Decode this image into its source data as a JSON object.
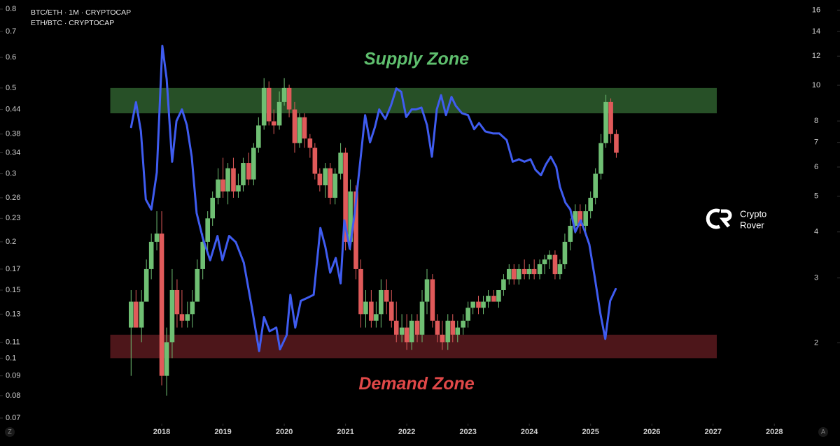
{
  "chart_data": {
    "type": "candlestick",
    "logscale": true,
    "xlim": [
      2015.36,
      2028.5
    ],
    "xticks": [
      2018,
      2019,
      2020,
      2021,
      2022,
      2023,
      2024,
      2025,
      2026,
      2027,
      2028
    ],
    "ylim": [
      0.07,
      0.8
    ],
    "yticks": [
      0.8,
      0.7,
      0.6,
      0.5,
      0.44,
      0.38,
      0.34,
      0.3,
      0.26,
      0.23,
      0.2,
      0.17,
      0.15,
      0.13,
      0.11,
      0.1,
      0.09,
      0.08,
      0.07
    ],
    "y2lim": [
      1.25,
      16.1
    ],
    "y2ticks": [
      16,
      14,
      12,
      10,
      8,
      7,
      6,
      5,
      4,
      3,
      2
    ],
    "zones": [
      {
        "label": "Supply Zone",
        "range": [
          0.43,
          0.5
        ],
        "x_range": [
          2017.16,
          2027.06
        ],
        "color": "#2e5e2e",
        "label_color": "#5fbf6e"
      },
      {
        "label": "Demand Zone",
        "range": [
          0.1,
          0.115
        ],
        "x_range": [
          2017.16,
          2027.06
        ],
        "color": "#5a1a1e",
        "label_color": "#e04848"
      }
    ],
    "logo": [
      "Crypto",
      "Rover"
    ],
    "buttons": [
      "Z",
      "A"
    ],
    "series": [
      {
        "name": "BTC/ETH · 1M · CRYPTOCAP",
        "type": "candlestick",
        "up_color": "#6fbf73",
        "down_color": "#e05a5a",
        "x": [
          2017.5,
          2017.58,
          2017.67,
          2017.75,
          2017.83,
          2017.92,
          2018,
          2018.08,
          2018.17,
          2018.25,
          2018.33,
          2018.42,
          2018.5,
          2018.58,
          2018.67,
          2018.75,
          2018.83,
          2018.92,
          2019,
          2019.08,
          2019.17,
          2019.25,
          2019.33,
          2019.42,
          2019.5,
          2019.58,
          2019.67,
          2019.75,
          2019.83,
          2019.92,
          2020,
          2020.08,
          2020.17,
          2020.25,
          2020.33,
          2020.42,
          2020.5,
          2020.58,
          2020.67,
          2020.75,
          2020.83,
          2020.92,
          2021,
          2021.08,
          2021.17,
          2021.25,
          2021.33,
          2021.42,
          2021.5,
          2021.58,
          2021.67,
          2021.75,
          2021.83,
          2021.92,
          2022,
          2022.08,
          2022.17,
          2022.25,
          2022.33,
          2022.42,
          2022.5,
          2022.58,
          2022.67,
          2022.75,
          2022.83,
          2022.92,
          2023,
          2023.08,
          2023.17,
          2023.25,
          2023.33,
          2023.42,
          2023.5,
          2023.58,
          2023.67,
          2023.75,
          2023.83,
          2023.92,
          2024,
          2024.08,
          2024.17,
          2024.25,
          2024.33,
          2024.42,
          2024.5,
          2024.58,
          2024.67,
          2024.75,
          2024.83,
          2024.92,
          2025,
          2025.08,
          2025.17,
          2025.25,
          2025.33,
          2025.42
        ],
        "open": [
          0.12,
          0.14,
          0.12,
          0.14,
          0.17,
          0.2,
          0.21,
          0.09,
          0.11,
          0.15,
          0.13,
          0.125,
          0.13,
          0.14,
          0.17,
          0.2,
          0.23,
          0.26,
          0.29,
          0.27,
          0.31,
          0.27,
          0.28,
          0.32,
          0.29,
          0.35,
          0.4,
          0.5,
          0.41,
          0.4,
          0.46,
          0.5,
          0.44,
          0.36,
          0.42,
          0.37,
          0.35,
          0.3,
          0.28,
          0.31,
          0.26,
          0.3,
          0.34,
          0.2,
          0.27,
          0.17,
          0.13,
          0.14,
          0.125,
          0.13,
          0.15,
          0.14,
          0.125,
          0.115,
          0.12,
          0.11,
          0.125,
          0.115,
          0.14,
          0.16,
          0.125,
          0.115,
          0.11,
          0.125,
          0.115,
          0.12,
          0.125,
          0.135,
          0.14,
          0.135,
          0.14,
          0.145,
          0.14,
          0.15,
          0.16,
          0.17,
          0.16,
          0.17,
          0.165,
          0.17,
          0.165,
          0.175,
          0.18,
          0.185,
          0.165,
          0.175,
          0.2,
          0.22,
          0.24,
          0.22,
          0.24,
          0.26,
          0.3,
          0.36,
          0.46,
          0.38
        ],
        "high": [
          0.15,
          0.15,
          0.15,
          0.18,
          0.21,
          0.24,
          0.24,
          0.12,
          0.17,
          0.16,
          0.15,
          0.14,
          0.15,
          0.18,
          0.21,
          0.24,
          0.27,
          0.31,
          0.33,
          0.32,
          0.33,
          0.3,
          0.33,
          0.34,
          0.36,
          0.42,
          0.53,
          0.52,
          0.44,
          0.49,
          0.53,
          0.51,
          0.46,
          0.43,
          0.43,
          0.38,
          0.36,
          0.31,
          0.32,
          0.32,
          0.31,
          0.36,
          0.35,
          0.29,
          0.28,
          0.18,
          0.15,
          0.15,
          0.14,
          0.16,
          0.16,
          0.15,
          0.14,
          0.13,
          0.13,
          0.13,
          0.13,
          0.15,
          0.17,
          0.165,
          0.13,
          0.125,
          0.13,
          0.13,
          0.125,
          0.13,
          0.14,
          0.14,
          0.145,
          0.145,
          0.15,
          0.15,
          0.15,
          0.165,
          0.175,
          0.175,
          0.175,
          0.18,
          0.175,
          0.18,
          0.18,
          0.185,
          0.19,
          0.19,
          0.18,
          0.21,
          0.23,
          0.25,
          0.25,
          0.25,
          0.27,
          0.31,
          0.38,
          0.48,
          0.47,
          0.39
        ],
        "low": [
          0.09,
          0.12,
          0.11,
          0.14,
          0.16,
          0.19,
          0.085,
          0.08,
          0.1,
          0.12,
          0.12,
          0.12,
          0.12,
          0.14,
          0.16,
          0.19,
          0.22,
          0.25,
          0.26,
          0.25,
          0.26,
          0.26,
          0.27,
          0.28,
          0.28,
          0.34,
          0.39,
          0.4,
          0.38,
          0.39,
          0.45,
          0.42,
          0.34,
          0.35,
          0.35,
          0.33,
          0.29,
          0.27,
          0.26,
          0.25,
          0.25,
          0.29,
          0.19,
          0.19,
          0.16,
          0.12,
          0.12,
          0.12,
          0.12,
          0.12,
          0.13,
          0.12,
          0.11,
          0.11,
          0.105,
          0.105,
          0.11,
          0.11,
          0.13,
          0.12,
          0.11,
          0.105,
          0.105,
          0.11,
          0.11,
          0.115,
          0.12,
          0.13,
          0.13,
          0.13,
          0.135,
          0.14,
          0.135,
          0.145,
          0.155,
          0.155,
          0.155,
          0.16,
          0.16,
          0.16,
          0.16,
          0.165,
          0.17,
          0.16,
          0.16,
          0.17,
          0.19,
          0.21,
          0.21,
          0.21,
          0.23,
          0.25,
          0.29,
          0.35,
          0.36,
          0.33
        ],
        "close": [
          0.14,
          0.12,
          0.14,
          0.17,
          0.2,
          0.21,
          0.09,
          0.11,
          0.15,
          0.13,
          0.125,
          0.13,
          0.14,
          0.17,
          0.2,
          0.23,
          0.26,
          0.29,
          0.27,
          0.31,
          0.27,
          0.28,
          0.32,
          0.29,
          0.35,
          0.4,
          0.5,
          0.41,
          0.4,
          0.46,
          0.5,
          0.44,
          0.36,
          0.42,
          0.37,
          0.35,
          0.3,
          0.28,
          0.31,
          0.26,
          0.3,
          0.34,
          0.2,
          0.27,
          0.17,
          0.13,
          0.14,
          0.125,
          0.13,
          0.15,
          0.14,
          0.125,
          0.115,
          0.12,
          0.11,
          0.125,
          0.115,
          0.14,
          0.16,
          0.125,
          0.115,
          0.11,
          0.125,
          0.115,
          0.12,
          0.125,
          0.135,
          0.14,
          0.135,
          0.14,
          0.145,
          0.14,
          0.15,
          0.16,
          0.17,
          0.16,
          0.17,
          0.165,
          0.17,
          0.165,
          0.175,
          0.18,
          0.185,
          0.165,
          0.175,
          0.2,
          0.22,
          0.24,
          0.22,
          0.24,
          0.26,
          0.3,
          0.36,
          0.46,
          0.38,
          0.34
        ]
      },
      {
        "name": "ETH/BTC · CRYPTOCAP",
        "type": "line",
        "axis": "y2",
        "color": "#3f5cf0",
        "x": [
          2017.5,
          2017.58,
          2017.66,
          2017.74,
          2017.83,
          2017.92,
          2018.01,
          2018.08,
          2018.17,
          2018.24,
          2018.33,
          2018.41,
          2018.49,
          2018.57,
          2018.67,
          2018.79,
          2018.91,
          2018.99,
          2019.1,
          2019.21,
          2019.34,
          2019.47,
          2019.59,
          2019.67,
          2019.76,
          2019.87,
          2019.93,
          2020.04,
          2020.1,
          2020.18,
          2020.27,
          2020.38,
          2020.48,
          2020.59,
          2020.67,
          2020.75,
          2020.84,
          2020.92,
          2020.98,
          2021.07,
          2021.15,
          2021.24,
          2021.32,
          2021.4,
          2021.48,
          2021.55,
          2021.65,
          2021.74,
          2021.83,
          2021.91,
          2021.99,
          2022.08,
          2022.15,
          2022.24,
          2022.33,
          2022.41,
          2022.49,
          2022.56,
          2022.64,
          2022.73,
          2022.8,
          2022.9,
          2023.0,
          2023.1,
          2023.18,
          2023.28,
          2023.41,
          2023.51,
          2023.63,
          2023.73,
          2023.83,
          2023.92,
          2024.02,
          2024.1,
          2024.19,
          2024.27,
          2024.35,
          2024.44,
          2024.5,
          2024.59,
          2024.67,
          2024.75,
          2024.84,
          2024.91,
          2024.98,
          2025.07,
          2025.16,
          2025.24,
          2025.32,
          2025.41
        ],
        "values": [
          7.7,
          9.0,
          7.5,
          4.9,
          4.6,
          5.8,
          12.8,
          10.4,
          6.2,
          8.0,
          8.6,
          7.8,
          6.4,
          4.5,
          3.85,
          3.35,
          3.9,
          3.35,
          3.9,
          3.75,
          3.3,
          2.5,
          1.9,
          2.35,
          2.15,
          2.2,
          1.92,
          2.1,
          2.7,
          2.2,
          2.6,
          2.65,
          2.7,
          4.1,
          3.65,
          3.1,
          3.4,
          2.9,
          4.3,
          3.6,
          4.5,
          6.2,
          8.3,
          7.0,
          7.7,
          8.6,
          8.1,
          8.8,
          9.8,
          9.6,
          8.2,
          8.6,
          8.6,
          8.7,
          7.8,
          6.4,
          8.6,
          9.4,
          8.3,
          9.3,
          8.8,
          8.4,
          8.3,
          7.6,
          7.9,
          7.5,
          7.4,
          7.4,
          7.1,
          6.2,
          6.3,
          6.2,
          6.3,
          5.9,
          5.7,
          6.1,
          6.4,
          6.0,
          5.3,
          4.8,
          4.6,
          4.0,
          4.3,
          4.0,
          3.7,
          3.0,
          2.4,
          2.05,
          2.6,
          2.8
        ]
      }
    ]
  }
}
